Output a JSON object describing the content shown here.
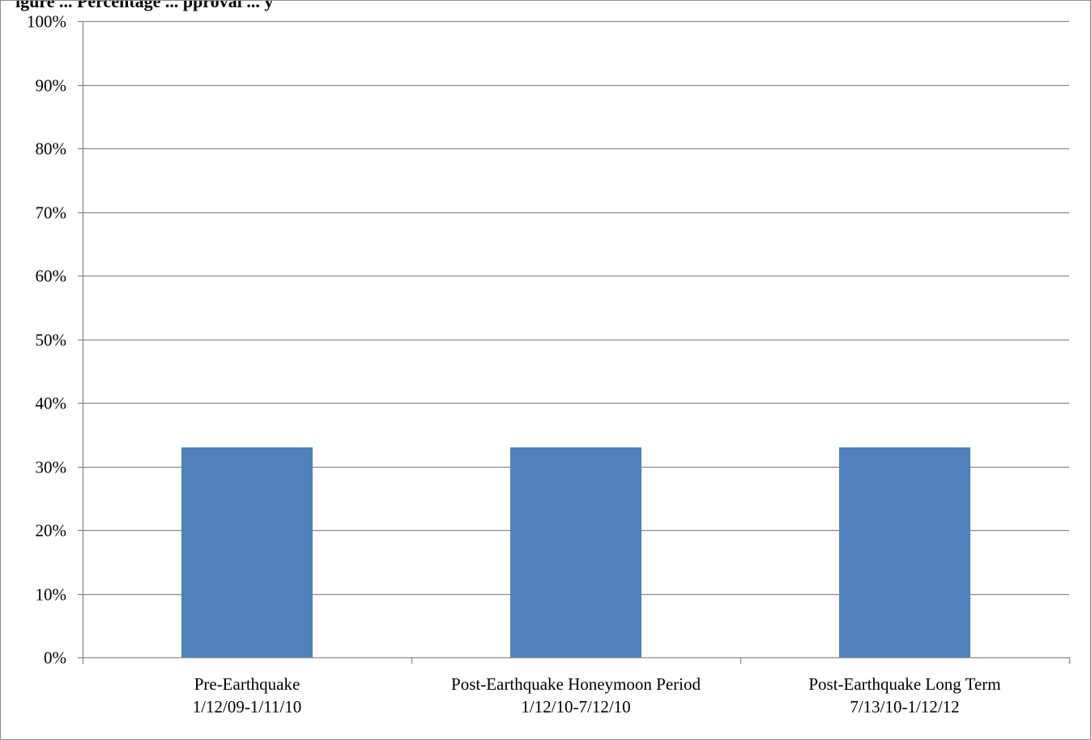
{
  "chart_data": {
    "type": "bar",
    "title": "igure ... Percentage ... pproval ... y",
    "categories": [
      [
        "Pre-Earthquake",
        "1/12/09-1/11/10"
      ],
      [
        "Post-Earthquake Honeymoon Period",
        "1/12/10-7/12/10"
      ],
      [
        "Post-Earthquake Long Term",
        "7/13/10-1/12/12"
      ]
    ],
    "values": [
      0.33,
      0.33,
      0.33
    ],
    "ylim": [
      0,
      1
    ],
    "yticks": [
      0,
      0.1,
      0.2,
      0.3,
      0.4,
      0.5,
      0.6,
      0.7,
      0.8,
      0.9,
      1.0
    ],
    "ytick_labels": [
      "0%",
      "10%",
      "20%",
      "30%",
      "40%",
      "50%",
      "60%",
      "70%",
      "80%",
      "90%",
      "100%"
    ],
    "xlabel": "",
    "ylabel": "",
    "grid": true,
    "legend": "none",
    "colors": {
      "bar": "#4f81bd",
      "grid": "#8c8c8c",
      "axis": "#8c8c8c",
      "frame": "#8c8c8c"
    }
  }
}
